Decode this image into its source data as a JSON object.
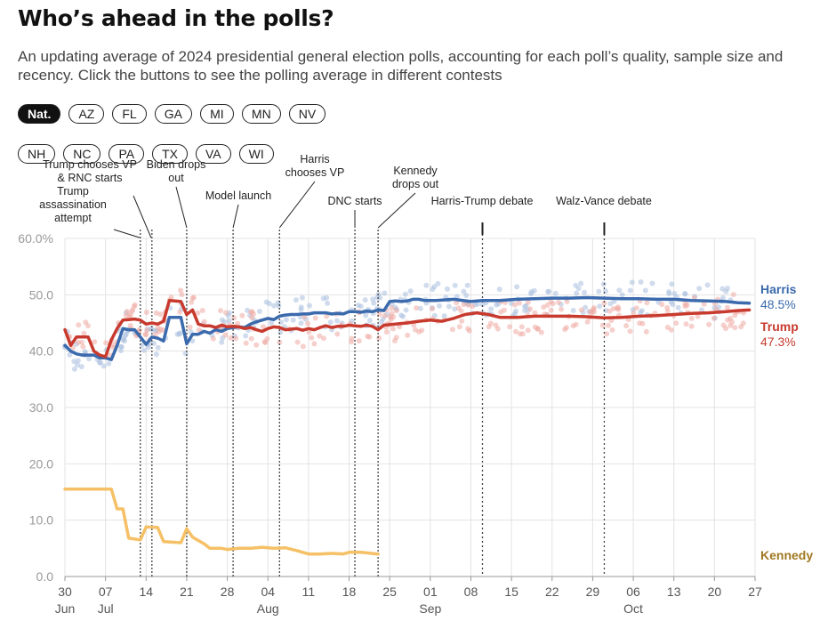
{
  "header": {
    "title": "Who’s ahead in the polls?",
    "subtitle": "An updating average of 2024 presidential general election polls, accounting for each poll’s quality, sample size and recency. Click the buttons to see the polling average in different contests"
  },
  "contests": {
    "selected": "Nat.",
    "row1": [
      "Nat.",
      "AZ",
      "FL",
      "GA",
      "MI",
      "MN",
      "NV"
    ],
    "row2": [
      "NH",
      "NC",
      "PA",
      "TX",
      "VA",
      "WI"
    ]
  },
  "colors": {
    "harris": "#3b6aad",
    "trump": "#c83a2e",
    "kennedy": "#f5c066",
    "kennedy_label": "#a07820",
    "grid": "#e3e3e3",
    "axis_text": "#555555",
    "harris_poll_dot": "#a9bfdf",
    "trump_poll_dot": "#efaaa2"
  },
  "chart_data": {
    "type": "line",
    "title": "",
    "xlabel": "",
    "ylabel": "",
    "x_range": [
      "2024-06-30",
      "2024-10-27"
    ],
    "ylim": [
      0,
      60
    ],
    "y_ticks": [
      0,
      10,
      20,
      30,
      40,
      50,
      60
    ],
    "y_tick_labels": [
      "0.0",
      "10.0",
      "20.0",
      "30.0",
      "40.0",
      "50.0",
      "60.0%"
    ],
    "x_ticks": [
      {
        "date": "2024-06-30",
        "day": "30",
        "month": "Jun"
      },
      {
        "date": "2024-07-07",
        "day": "07",
        "month": "Jul"
      },
      {
        "date": "2024-07-14",
        "day": "14",
        "month": ""
      },
      {
        "date": "2024-07-21",
        "day": "21",
        "month": ""
      },
      {
        "date": "2024-07-28",
        "day": "28",
        "month": ""
      },
      {
        "date": "2024-08-04",
        "day": "04",
        "month": "Aug"
      },
      {
        "date": "2024-08-11",
        "day": "11",
        "month": ""
      },
      {
        "date": "2024-08-18",
        "day": "18",
        "month": ""
      },
      {
        "date": "2024-08-25",
        "day": "25",
        "month": ""
      },
      {
        "date": "2024-09-01",
        "day": "01",
        "month": "Sep"
      },
      {
        "date": "2024-09-08",
        "day": "08",
        "month": ""
      },
      {
        "date": "2024-09-15",
        "day": "15",
        "month": ""
      },
      {
        "date": "2024-09-22",
        "day": "22",
        "month": ""
      },
      {
        "date": "2024-09-29",
        "day": "29",
        "month": ""
      },
      {
        "date": "2024-10-06",
        "day": "06",
        "month": "Oct"
      },
      {
        "date": "2024-10-13",
        "day": "13",
        "month": ""
      },
      {
        "date": "2024-10-20",
        "day": "20",
        "month": ""
      },
      {
        "date": "2024-10-27",
        "day": "27",
        "month": ""
      }
    ],
    "grid": true,
    "series": [
      {
        "name": "Harris",
        "end_label": "48.5%",
        "points": [
          [
            "2024-06-30",
            41
          ],
          [
            "2024-07-01",
            40
          ],
          [
            "2024-07-02",
            39.5
          ],
          [
            "2024-07-03",
            39.3
          ],
          [
            "2024-07-05",
            39.3
          ],
          [
            "2024-07-06",
            38.8
          ],
          [
            "2024-07-07",
            38.8
          ],
          [
            "2024-07-08",
            38.5
          ],
          [
            "2024-07-09",
            41
          ],
          [
            "2024-07-10",
            44
          ],
          [
            "2024-07-11",
            43.8
          ],
          [
            "2024-07-12",
            43.8
          ],
          [
            "2024-07-13",
            42.5
          ],
          [
            "2024-07-14",
            41.2
          ],
          [
            "2024-07-15",
            42.5
          ],
          [
            "2024-07-16",
            42.3
          ],
          [
            "2024-07-17",
            41.8
          ],
          [
            "2024-07-18",
            46
          ],
          [
            "2024-07-20",
            46
          ],
          [
            "2024-07-21",
            41.3
          ],
          [
            "2024-07-22",
            43
          ],
          [
            "2024-07-23",
            43
          ],
          [
            "2024-07-24",
            43.5
          ],
          [
            "2024-07-25",
            43.2
          ],
          [
            "2024-07-26",
            43.8
          ],
          [
            "2024-07-27",
            43.5
          ],
          [
            "2024-07-28",
            44
          ],
          [
            "2024-07-29",
            44.2
          ],
          [
            "2024-07-30",
            44.3
          ],
          [
            "2024-07-31",
            44.2
          ],
          [
            "2024-08-01",
            44.8
          ],
          [
            "2024-08-02",
            45.2
          ],
          [
            "2024-08-03",
            45.5
          ],
          [
            "2024-08-04",
            45.8
          ],
          [
            "2024-08-05",
            45.6
          ],
          [
            "2024-08-06",
            46.2
          ],
          [
            "2024-08-07",
            46.4
          ],
          [
            "2024-08-08",
            46.5
          ],
          [
            "2024-08-09",
            46.5
          ],
          [
            "2024-08-10",
            46.6
          ],
          [
            "2024-08-11",
            46.6
          ],
          [
            "2024-08-12",
            46.8
          ],
          [
            "2024-08-13",
            46.8
          ],
          [
            "2024-08-14",
            46.8
          ],
          [
            "2024-08-15",
            46.6
          ],
          [
            "2024-08-16",
            46.7
          ],
          [
            "2024-08-17",
            46.6
          ],
          [
            "2024-08-18",
            47
          ],
          [
            "2024-08-19",
            47
          ],
          [
            "2024-08-20",
            46.9
          ],
          [
            "2024-08-21",
            47.1
          ],
          [
            "2024-08-22",
            47
          ],
          [
            "2024-08-23",
            47.3
          ],
          [
            "2024-08-24",
            47.2
          ],
          [
            "2024-08-25",
            48.8
          ],
          [
            "2024-08-26",
            48.9
          ],
          [
            "2024-08-27",
            48.8
          ],
          [
            "2024-08-28",
            48.9
          ],
          [
            "2024-08-29",
            49.2
          ],
          [
            "2024-08-30",
            49.2
          ],
          [
            "2024-08-31",
            49
          ],
          [
            "2024-09-02",
            49
          ],
          [
            "2024-09-05",
            49.2
          ],
          [
            "2024-09-08",
            48.8
          ],
          [
            "2024-09-10",
            49
          ],
          [
            "2024-09-13",
            49
          ],
          [
            "2024-09-16",
            49.2
          ],
          [
            "2024-09-19",
            49.3
          ],
          [
            "2024-09-22",
            49.4
          ],
          [
            "2024-09-25",
            49.4
          ],
          [
            "2024-09-28",
            49.5
          ],
          [
            "2024-10-01",
            49.4
          ],
          [
            "2024-10-04",
            49.3
          ],
          [
            "2024-10-07",
            49.3
          ],
          [
            "2024-10-10",
            49.2
          ],
          [
            "2024-10-13",
            49.2
          ],
          [
            "2024-10-16",
            49
          ],
          [
            "2024-10-19",
            48.9
          ],
          [
            "2024-10-22",
            48.8
          ],
          [
            "2024-10-24",
            48.6
          ],
          [
            "2024-10-26",
            48.5
          ]
        ]
      },
      {
        "name": "Trump",
        "end_label": "47.3%",
        "points": [
          [
            "2024-06-30",
            43.8
          ],
          [
            "2024-07-01",
            41
          ],
          [
            "2024-07-02",
            42.5
          ],
          [
            "2024-07-04",
            42.5
          ],
          [
            "2024-07-05",
            40
          ],
          [
            "2024-07-06",
            39.3
          ],
          [
            "2024-07-07",
            39
          ],
          [
            "2024-07-08",
            42
          ],
          [
            "2024-07-09",
            44
          ],
          [
            "2024-07-10",
            45.5
          ],
          [
            "2024-07-11",
            45.6
          ],
          [
            "2024-07-12",
            45.7
          ],
          [
            "2024-07-13",
            45.5
          ],
          [
            "2024-07-14",
            44.8
          ],
          [
            "2024-07-15",
            45
          ],
          [
            "2024-07-16",
            44.8
          ],
          [
            "2024-07-17",
            45.3
          ],
          [
            "2024-07-18",
            49
          ],
          [
            "2024-07-20",
            48.8
          ],
          [
            "2024-07-21",
            46.5
          ],
          [
            "2024-07-22",
            47.3
          ],
          [
            "2024-07-23",
            44.8
          ],
          [
            "2024-07-24",
            44.5
          ],
          [
            "2024-07-25",
            44.5
          ],
          [
            "2024-07-26",
            44.2
          ],
          [
            "2024-07-27",
            44.6
          ],
          [
            "2024-07-28",
            44.3
          ],
          [
            "2024-07-29",
            44.4
          ],
          [
            "2024-07-30",
            44.3
          ],
          [
            "2024-07-31",
            44
          ],
          [
            "2024-08-01",
            44.2
          ],
          [
            "2024-08-02",
            43.8
          ],
          [
            "2024-08-03",
            43.5
          ],
          [
            "2024-08-04",
            44
          ],
          [
            "2024-08-05",
            44.3
          ],
          [
            "2024-08-06",
            44.2
          ],
          [
            "2024-08-07",
            43.8
          ],
          [
            "2024-08-08",
            43.9
          ],
          [
            "2024-08-09",
            44
          ],
          [
            "2024-08-10",
            43.7
          ],
          [
            "2024-08-11",
            44
          ],
          [
            "2024-08-12",
            43.8
          ],
          [
            "2024-08-13",
            44.2
          ],
          [
            "2024-08-14",
            44.5
          ],
          [
            "2024-08-15",
            44.2
          ],
          [
            "2024-08-16",
            44.4
          ],
          [
            "2024-08-17",
            44.4
          ],
          [
            "2024-08-18",
            44.6
          ],
          [
            "2024-08-19",
            44.5
          ],
          [
            "2024-08-20",
            44.4
          ],
          [
            "2024-08-21",
            44.6
          ],
          [
            "2024-08-22",
            44.4
          ],
          [
            "2024-08-23",
            43.8
          ],
          [
            "2024-08-24",
            44.6
          ],
          [
            "2024-08-26",
            44.8
          ],
          [
            "2024-08-28",
            45
          ],
          [
            "2024-08-30",
            45.3
          ],
          [
            "2024-09-01",
            45.5
          ],
          [
            "2024-09-03",
            45.3
          ],
          [
            "2024-09-05",
            45.8
          ],
          [
            "2024-09-07",
            46.5
          ],
          [
            "2024-09-09",
            46.8
          ],
          [
            "2024-09-11",
            46.5
          ],
          [
            "2024-09-13",
            46
          ],
          [
            "2024-09-16",
            46
          ],
          [
            "2024-09-19",
            46.2
          ],
          [
            "2024-09-22",
            46.2
          ],
          [
            "2024-09-25",
            46.2
          ],
          [
            "2024-09-28",
            46.1
          ],
          [
            "2024-10-01",
            45.9
          ],
          [
            "2024-10-04",
            46
          ],
          [
            "2024-10-07",
            46.2
          ],
          [
            "2024-10-10",
            46.3
          ],
          [
            "2024-10-13",
            46.5
          ],
          [
            "2024-10-16",
            46.7
          ],
          [
            "2024-10-19",
            46.8
          ],
          [
            "2024-10-22",
            47
          ],
          [
            "2024-10-24",
            47.2
          ],
          [
            "2024-10-26",
            47.3
          ]
        ]
      },
      {
        "name": "Kennedy",
        "end_label": "",
        "points": [
          [
            "2024-06-30",
            15.5
          ],
          [
            "2024-07-08",
            15.5
          ],
          [
            "2024-07-09",
            12
          ],
          [
            "2024-07-10",
            12
          ],
          [
            "2024-07-11",
            6.8
          ],
          [
            "2024-07-13",
            6.5
          ],
          [
            "2024-07-14",
            8.8
          ],
          [
            "2024-07-16",
            8.7
          ],
          [
            "2024-07-17",
            6.2
          ],
          [
            "2024-07-20",
            6
          ],
          [
            "2024-07-21",
            8.5
          ],
          [
            "2024-07-22",
            7
          ],
          [
            "2024-07-24",
            5.8
          ],
          [
            "2024-07-25",
            5
          ],
          [
            "2024-07-27",
            5
          ],
          [
            "2024-07-28",
            4.8
          ],
          [
            "2024-07-30",
            5
          ],
          [
            "2024-08-01",
            5
          ],
          [
            "2024-08-03",
            5.2
          ],
          [
            "2024-08-05",
            5
          ],
          [
            "2024-08-07",
            5.1
          ],
          [
            "2024-08-09",
            4.6
          ],
          [
            "2024-08-11",
            4
          ],
          [
            "2024-08-13",
            4
          ],
          [
            "2024-08-15",
            4.1
          ],
          [
            "2024-08-17",
            4
          ],
          [
            "2024-08-18",
            4.3
          ],
          [
            "2024-08-20",
            4.3
          ],
          [
            "2024-08-23",
            4
          ]
        ]
      }
    ],
    "events": [
      {
        "date": "2024-07-13",
        "label": "Trump assassination attempt",
        "lines": [
          "Trump",
          "assassination",
          "attempt"
        ]
      },
      {
        "date": "2024-07-15",
        "label": "Trump chooses VP & RNC starts",
        "lines": [
          "Trump chooses VP",
          "& RNC starts"
        ]
      },
      {
        "date": "2024-07-21",
        "label": "Biden drops out",
        "lines": [
          "Biden drops",
          "out"
        ]
      },
      {
        "date": "2024-07-29",
        "label": "Model launch",
        "lines": [
          "Model launch"
        ]
      },
      {
        "date": "2024-08-06",
        "label": "Harris chooses VP",
        "lines": [
          "Harris",
          "chooses VP"
        ]
      },
      {
        "date": "2024-08-19",
        "label": "DNC starts",
        "lines": [
          "DNC starts"
        ]
      },
      {
        "date": "2024-08-23",
        "label": "Kennedy drops out",
        "lines": [
          "Kennedy",
          "drops out"
        ]
      },
      {
        "date": "2024-09-10",
        "label": "Harris-Trump debate",
        "lines": [
          "Harris-Trump debate"
        ]
      },
      {
        "date": "2024-10-01",
        "label": "Walz-Vance debate",
        "lines": [
          "Walz-Vance debate"
        ]
      }
    ]
  }
}
